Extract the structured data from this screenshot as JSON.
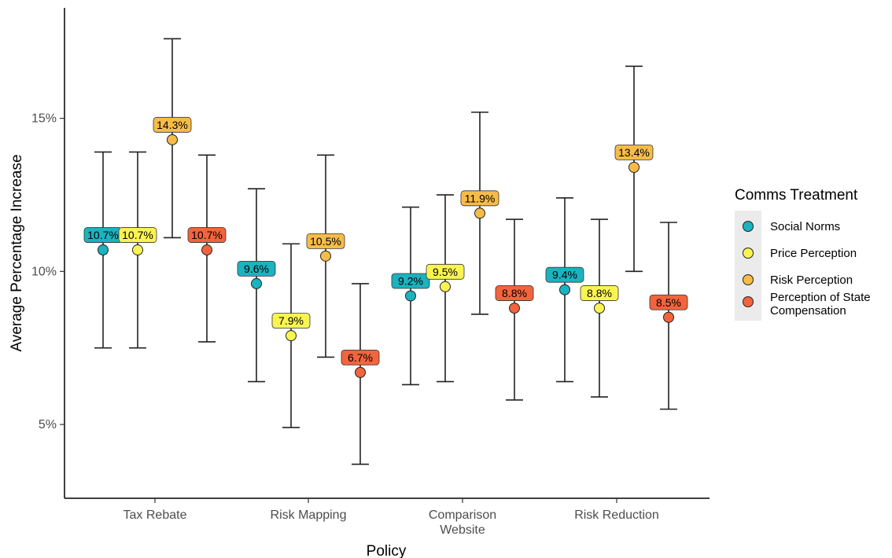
{
  "chart_data": {
    "type": "scatter",
    "title": "",
    "xlabel": "Policy",
    "ylabel": "Average Percentage Increase",
    "categories": [
      [
        "Tax Rebate"
      ],
      [
        "Risk Mapping"
      ],
      [
        "Comparison",
        "Website"
      ],
      [
        "Risk Reduction"
      ]
    ],
    "y_ticks": [
      {
        "value": 5,
        "label": "5%"
      },
      {
        "value": 10,
        "label": "10%"
      },
      {
        "value": 15,
        "label": "15%"
      }
    ],
    "ylim": [
      3.0,
      18.3
    ],
    "grid": false,
    "legend": {
      "title": "Comms Treatment",
      "placement": "right"
    },
    "series": [
      {
        "name": [
          "Social Norms"
        ],
        "color": "#1ab3bf",
        "values": [
          10.7,
          9.6,
          9.2,
          9.4
        ],
        "labels": [
          "10.7%",
          "9.6%",
          "9.2%",
          "9.4%"
        ],
        "ci_low": [
          7.5,
          6.4,
          6.3,
          6.4
        ],
        "ci_high": [
          13.9,
          12.7,
          12.1,
          12.4
        ]
      },
      {
        "name": [
          "Price Perception"
        ],
        "color": "#faf453",
        "values": [
          10.7,
          7.9,
          9.5,
          8.8
        ],
        "labels": [
          "10.7%",
          "7.9%",
          "9.5%",
          "8.8%"
        ],
        "ci_low": [
          7.5,
          4.9,
          6.4,
          5.9
        ],
        "ci_high": [
          13.9,
          10.9,
          12.5,
          11.7
        ]
      },
      {
        "name": [
          "Risk Perception"
        ],
        "color": "#f7bc48",
        "values": [
          14.3,
          10.5,
          11.9,
          13.4
        ],
        "labels": [
          "14.3%",
          "10.5%",
          "11.9%",
          "13.4%"
        ],
        "ci_low": [
          11.1,
          7.2,
          8.6,
          10.0
        ],
        "ci_high": [
          17.6,
          13.8,
          15.2,
          16.7
        ]
      },
      {
        "name": [
          "Perception of State",
          "Compensation"
        ],
        "color": "#f2643e",
        "values": [
          10.7,
          6.7,
          8.8,
          8.5
        ],
        "labels": [
          "10.7%",
          "6.7%",
          "8.8%",
          "8.5%"
        ],
        "ci_low": [
          7.7,
          3.7,
          5.8,
          5.5
        ],
        "ci_high": [
          13.8,
          9.6,
          11.7,
          11.6
        ]
      }
    ]
  }
}
